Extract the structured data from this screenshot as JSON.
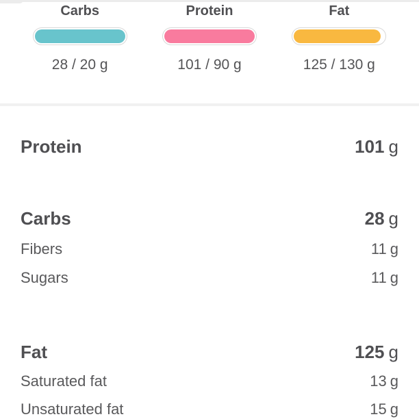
{
  "theme": {
    "background": "#ffffff",
    "top_edge": "#ececec",
    "divider": "#f1f1f1",
    "track_border": "#d8d8d8",
    "text_primary": "#545456",
    "carbs_color": "#68C4CC",
    "protein_color": "#F97B9E",
    "fat_color": "#F9B840"
  },
  "summary": {
    "items": [
      {
        "label": "Carbs",
        "value": "28 / 20 g",
        "consumed": 28,
        "goal": 20,
        "color": "#68C4CC",
        "fill_width": "100%"
      },
      {
        "label": "Protein",
        "value": "101 / 90 g",
        "consumed": 101,
        "goal": 90,
        "color": "#F97B9E",
        "fill_width": "100%"
      },
      {
        "label": "Fat",
        "value": "125 / 130 g",
        "consumed": 125,
        "goal": 130,
        "color": "#F9B840",
        "fill_width": "96%"
      }
    ]
  },
  "details": {
    "groups": [
      {
        "name": "protein",
        "header": {
          "label": "Protein",
          "value": "101",
          "unit": "g"
        },
        "rows": []
      },
      {
        "name": "carbs",
        "header": {
          "label": "Carbs",
          "value": "28",
          "unit": "g"
        },
        "rows": [
          {
            "label": "Fibers",
            "value": "11",
            "unit": "g"
          },
          {
            "label": "Sugars",
            "value": "11",
            "unit": "g"
          }
        ]
      },
      {
        "name": "fat",
        "header": {
          "label": "Fat",
          "value": "125",
          "unit": "g"
        },
        "rows": [
          {
            "label": "Saturated fat",
            "value": "13",
            "unit": "g"
          },
          {
            "label": "Unsaturated fat",
            "value": "15",
            "unit": "g"
          }
        ]
      }
    ]
  }
}
